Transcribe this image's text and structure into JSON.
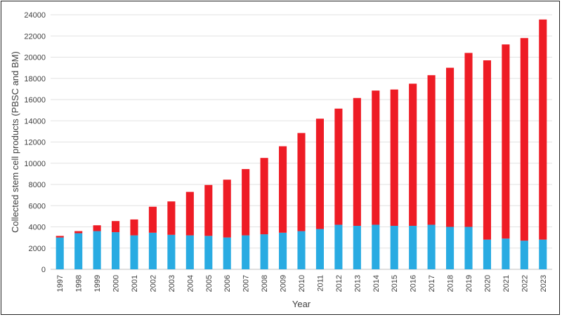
{
  "chart_data": {
    "type": "bar",
    "stacked": true,
    "xlabel": "Year",
    "ylabel": "Collected stem cell products (PBSC and BM)",
    "ylim": [
      0,
      24000
    ],
    "yticks": [
      0,
      2000,
      4000,
      6000,
      8000,
      10000,
      12000,
      14000,
      16000,
      18000,
      20000,
      22000,
      24000
    ],
    "grid": true,
    "categories": [
      "1997",
      "1998",
      "1999",
      "2000",
      "2001",
      "2002",
      "2003",
      "2004",
      "2005",
      "2006",
      "2007",
      "2008",
      "2009",
      "2010",
      "2011",
      "2012",
      "2013",
      "2014",
      "2015",
      "2016",
      "2017",
      "2018",
      "2019",
      "2020",
      "2021",
      "2022",
      "2023"
    ],
    "series": [
      {
        "color": "#29abe2",
        "values": [
          3000,
          3400,
          3600,
          3500,
          3200,
          3450,
          3250,
          3200,
          3150,
          3000,
          3200,
          3300,
          3450,
          3600,
          3800,
          4200,
          4100,
          4200,
          4100,
          4100,
          4200,
          4000,
          4000,
          2800,
          2900,
          2700,
          2800
        ]
      },
      {
        "color": "#ee1c25",
        "values": [
          150,
          200,
          550,
          1050,
          1500,
          2450,
          3150,
          4100,
          4800,
          5450,
          6250,
          7200,
          8150,
          9250,
          10400,
          10950,
          12050,
          12650,
          12850,
          13400,
          14100,
          15000,
          16400,
          16900,
          18300,
          19100,
          20750
        ]
      }
    ]
  }
}
